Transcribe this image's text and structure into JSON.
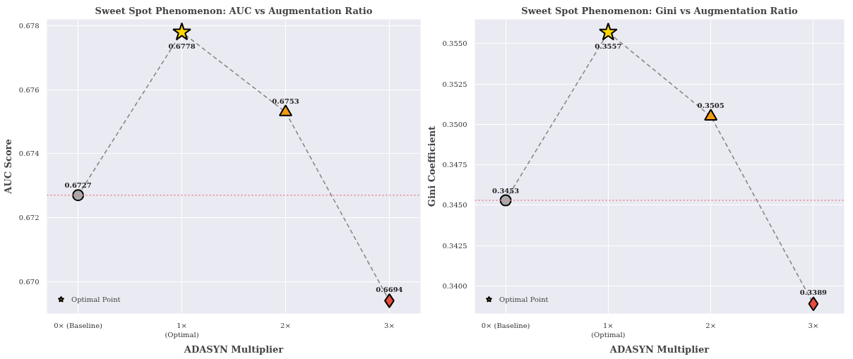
{
  "chart_data": [
    {
      "type": "line",
      "title": "Sweet Spot Phenomenon: AUC vs Augmentation Ratio",
      "xlabel": "ADASYN Multiplier",
      "ylabel": "AUC Score",
      "categories": [
        "0× (Baseline)",
        "1×\n(Optimal)",
        "2×",
        "3×"
      ],
      "ylim": [
        0.669,
        0.6782
      ],
      "yticks": [
        {
          "value": 0.67,
          "label": "0.670"
        },
        {
          "value": 0.672,
          "label": "0.672"
        },
        {
          "value": 0.674,
          "label": "0.674"
        },
        {
          "value": 0.676,
          "label": "0.676"
        },
        {
          "value": 0.678,
          "label": "0.678"
        }
      ],
      "grid": true,
      "legend": "bottom left",
      "series": [
        {
          "type": "line",
          "color": "#888888",
          "line_style": "dashed",
          "values": [
            0.6727,
            0.6778,
            0.6753,
            0.6694
          ]
        },
        {
          "type": "scatter",
          "color": "#a9a9a9",
          "marker": "circle",
          "values": [
            0.6727,
            null,
            null,
            null
          ],
          "value_labels": [
            "0.6727",
            null,
            null,
            null
          ]
        },
        {
          "type": "scatter",
          "name": "Optimal Point",
          "color": "#ffd700",
          "marker": "star",
          "values": [
            null,
            0.6778,
            null,
            null
          ],
          "value_labels": [
            null,
            "0.6778",
            null,
            null
          ]
        },
        {
          "type": "scatter",
          "color": "#f39c12",
          "marker": "triangle",
          "values": [
            null,
            null,
            0.6753,
            null
          ],
          "value_labels": [
            null,
            null,
            "0.6753",
            null
          ]
        },
        {
          "type": "scatter",
          "color": "#e74c3c",
          "marker": "diamond",
          "values": [
            null,
            null,
            null,
            0.6694
          ],
          "value_labels": [
            null,
            null,
            null,
            "0.6694"
          ]
        }
      ],
      "ref_lines": [
        {
          "axis": "y",
          "value": 0.6727,
          "color": "#e8808a",
          "line_style": "dotted"
        }
      ]
    },
    {
      "type": "line",
      "title": "Sweet Spot Phenomenon: Gini vs Augmentation Ratio",
      "xlabel": "ADASYN Multiplier",
      "ylabel": "Gini Coefficient",
      "categories": [
        "0× (Baseline)",
        "1×\n(Optimal)",
        "2×",
        "3×"
      ],
      "ylim": [
        0.3383,
        0.3565
      ],
      "yticks": [
        {
          "value": 0.34,
          "label": "0.3400"
        },
        {
          "value": 0.3425,
          "label": "0.3425"
        },
        {
          "value": 0.345,
          "label": "0.3450"
        },
        {
          "value": 0.3475,
          "label": "0.3475"
        },
        {
          "value": 0.35,
          "label": "0.3500"
        },
        {
          "value": 0.3525,
          "label": "0.3525"
        },
        {
          "value": 0.355,
          "label": "0.3550"
        }
      ],
      "grid": true,
      "legend": "bottom left",
      "series": [
        {
          "type": "line",
          "color": "#888888",
          "line_style": "dashed",
          "values": [
            0.3453,
            0.3557,
            0.3505,
            0.3389
          ]
        },
        {
          "type": "scatter",
          "color": "#a9a9a9",
          "marker": "circle",
          "values": [
            0.3453,
            null,
            null,
            null
          ],
          "value_labels": [
            "0.3453",
            null,
            null,
            null
          ]
        },
        {
          "type": "scatter",
          "name": "Optimal Point",
          "color": "#ffd700",
          "marker": "star",
          "values": [
            null,
            0.3557,
            null,
            null
          ],
          "value_labels": [
            null,
            "0.3557",
            null,
            null
          ]
        },
        {
          "type": "scatter",
          "color": "#f39c12",
          "marker": "triangle",
          "values": [
            null,
            null,
            0.3505,
            null
          ],
          "value_labels": [
            null,
            null,
            "0.3505",
            null
          ]
        },
        {
          "type": "scatter",
          "color": "#e74c3c",
          "marker": "diamond",
          "values": [
            null,
            null,
            null,
            0.3389
          ],
          "value_labels": [
            null,
            null,
            null,
            "0.3389"
          ]
        }
      ],
      "ref_lines": [
        {
          "axis": "y",
          "value": 0.3453,
          "color": "#e8808a",
          "line_style": "dotted"
        }
      ]
    }
  ]
}
